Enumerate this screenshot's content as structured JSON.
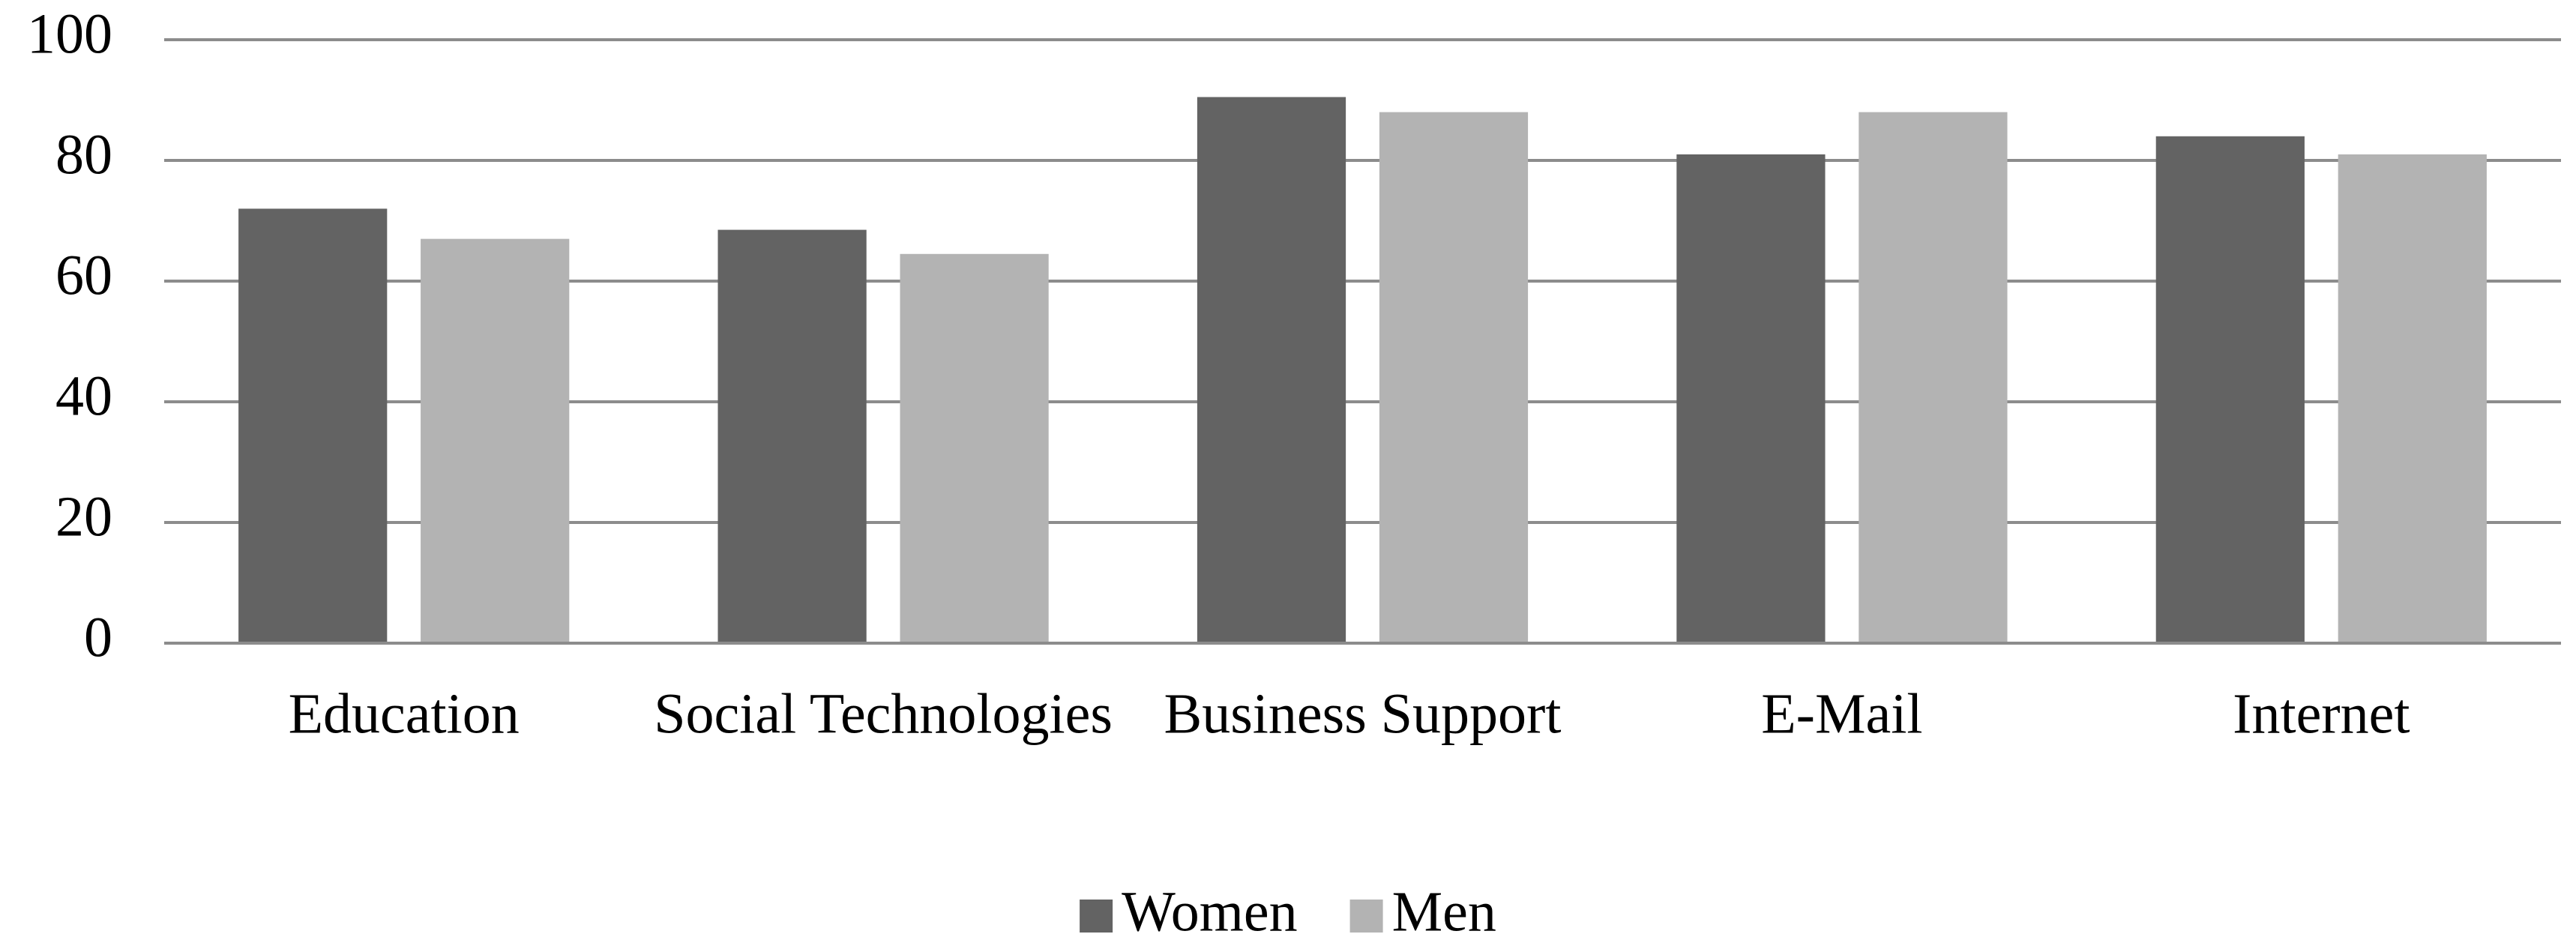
{
  "chart_data": {
    "type": "bar",
    "categories": [
      "Education",
      "Social Technologies",
      "Business Support",
      "E-Mail",
      "Internet"
    ],
    "series": [
      {
        "name": "Women",
        "color": "#636363",
        "values": [
          72,
          68.5,
          90.5,
          81,
          84
        ]
      },
      {
        "name": "Men",
        "color": "#b3b3b3",
        "values": [
          67,
          64.5,
          88,
          88,
          81
        ]
      }
    ],
    "ylim": [
      0,
      100
    ],
    "yticks": [
      0,
      20,
      40,
      60,
      80,
      100
    ],
    "grid": true,
    "legend": "bottom"
  }
}
